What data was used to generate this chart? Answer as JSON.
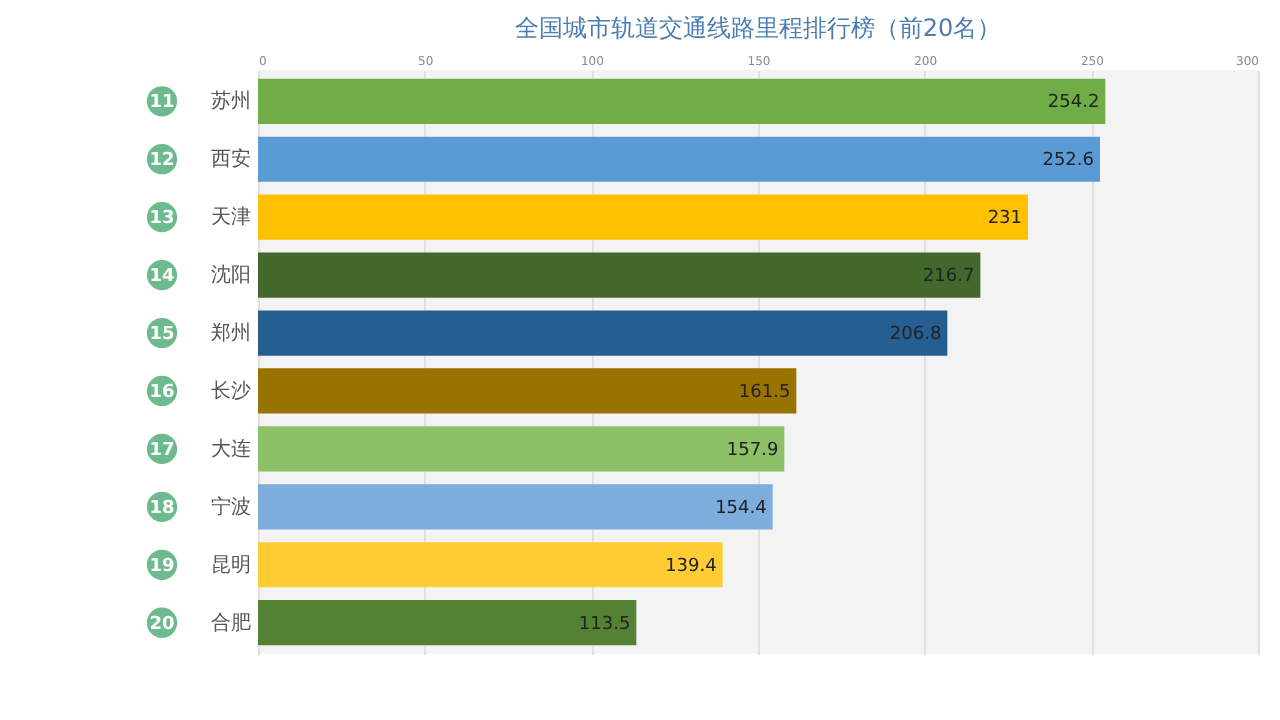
{
  "chart_data": {
    "type": "bar",
    "orientation": "horizontal",
    "title": "全国城市轨道交通线路里程排行榜（前20名）",
    "categories": [
      "苏州",
      "西安",
      "天津",
      "沈阳",
      "郑州",
      "长沙",
      "大连",
      "宁波",
      "昆明",
      "合肥"
    ],
    "values": [
      254.2,
      252.6,
      231,
      216.7,
      206.8,
      161.5,
      157.9,
      154.4,
      139.4,
      113.5
    ],
    "colors": [
      "#70ad47",
      "#5b9bd5",
      "#ffc000",
      "#43682b",
      "#255e91",
      "#997300",
      "#8cc168",
      "#7caddd",
      "#ffcd33",
      "#548235"
    ],
    "xlim": [
      0,
      300
    ],
    "xticks": [
      0,
      50,
      100,
      150,
      200,
      250,
      300
    ],
    "grid": "x",
    "data_labels": true,
    "annotations": [
      "11",
      "12",
      "13",
      "14",
      "15",
      "16",
      "17",
      "18",
      "19",
      "20"
    ]
  }
}
